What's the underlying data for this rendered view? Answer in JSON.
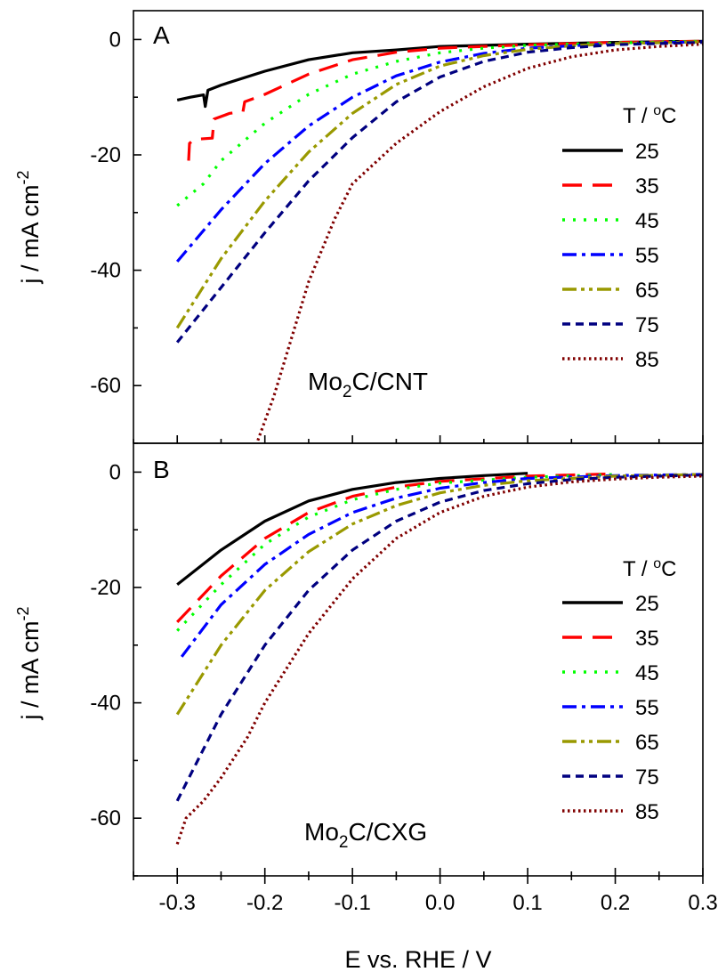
{
  "chart_data": [
    {
      "type": "line",
      "panel_label": "A",
      "annotation": {
        "main": "Mo",
        "sub": "2",
        "rest": "C/CNT"
      },
      "ylabel": {
        "main": "j / mA cm",
        "sup": "-2"
      },
      "xlim": [
        -0.35,
        0.3
      ],
      "ylim": [
        -70,
        5
      ],
      "xticks": [
        -0.3,
        -0.2,
        -0.1,
        0.0,
        0.1,
        0.2,
        0.3
      ],
      "yticks": [
        0,
        -20,
        -40,
        -60
      ],
      "ytick_labels": [
        "0",
        "-20",
        "-40",
        "-60"
      ],
      "legend_title": {
        "main": "T / ",
        "sup": "o",
        "rest": "C"
      },
      "legend_position": "right",
      "series": [
        {
          "name": "25",
          "color": "#000000",
          "dash": "solid",
          "x": [
            -0.3,
            -0.285,
            -0.27,
            -0.268,
            -0.265,
            -0.25,
            -0.2,
            -0.15,
            -0.1,
            -0.05,
            0.0,
            0.1,
            0.2,
            0.3
          ],
          "y": [
            -10.5,
            -10.0,
            -9.6,
            -11.6,
            -8.8,
            -7.9,
            -5.5,
            -3.5,
            -2.3,
            -1.8,
            -1.2,
            -0.8,
            -0.5,
            -0.3
          ]
        },
        {
          "name": "35",
          "color": "#ff0000",
          "dash": "long-dash",
          "x": [
            -0.287,
            -0.286,
            -0.28,
            -0.26,
            -0.258,
            -0.24,
            -0.225,
            -0.223,
            -0.2,
            -0.15,
            -0.1,
            -0.05,
            0.0,
            0.1,
            0.2,
            0.3
          ],
          "y": [
            -21.0,
            -18.0,
            -17.3,
            -17.1,
            -13.8,
            -12.8,
            -12.5,
            -10.8,
            -9.5,
            -6.0,
            -3.5,
            -2.2,
            -1.5,
            -0.9,
            -0.5,
            -0.3
          ]
        },
        {
          "name": "45",
          "color": "#00ff00",
          "dash": "dot",
          "x": [
            -0.3,
            -0.27,
            -0.25,
            -0.2,
            -0.15,
            -0.1,
            -0.05,
            0.0,
            0.05,
            0.1,
            0.2,
            0.3
          ],
          "y": [
            -28.8,
            -25.0,
            -21.0,
            -14.5,
            -9.5,
            -6.0,
            -3.8,
            -2.3,
            -1.5,
            -1.0,
            -0.6,
            -0.3
          ]
        },
        {
          "name": "55",
          "color": "#0000ff",
          "dash": "dash-dot",
          "x": [
            -0.3,
            -0.25,
            -0.2,
            -0.15,
            -0.1,
            -0.05,
            0.0,
            0.05,
            0.1,
            0.2,
            0.3
          ],
          "y": [
            -38.5,
            -29.5,
            -21.5,
            -15.0,
            -10.0,
            -6.3,
            -3.9,
            -2.4,
            -1.5,
            -0.7,
            -0.4
          ]
        },
        {
          "name": "65",
          "color": "#999900",
          "dash": "dash-dot-dot",
          "x": [
            -0.3,
            -0.25,
            -0.2,
            -0.15,
            -0.1,
            -0.05,
            0.0,
            0.05,
            0.1,
            0.15,
            0.2,
            0.3
          ],
          "y": [
            -50.0,
            -38.0,
            -28.0,
            -19.5,
            -12.8,
            -7.8,
            -4.6,
            -2.8,
            -1.7,
            -1.1,
            -0.7,
            -0.4
          ]
        },
        {
          "name": "75",
          "color": "#000080",
          "dash": "short-dash",
          "x": [
            -0.3,
            -0.25,
            -0.2,
            -0.15,
            -0.1,
            -0.05,
            0.0,
            0.05,
            0.1,
            0.15,
            0.2,
            0.3
          ],
          "y": [
            -52.5,
            -43.0,
            -33.5,
            -24.5,
            -17.0,
            -10.8,
            -6.5,
            -3.8,
            -2.2,
            -1.4,
            -0.9,
            -0.5
          ]
        },
        {
          "name": "85",
          "color": "#800000",
          "dash": "fine-dot",
          "x": [
            -0.208,
            -0.19,
            -0.17,
            -0.15,
            -0.12,
            -0.1,
            -0.05,
            0.0,
            0.05,
            0.1,
            0.15,
            0.2,
            0.25,
            0.3
          ],
          "y": [
            -69.5,
            -62.0,
            -52.0,
            -42.0,
            -31.0,
            -25.0,
            -18.0,
            -12.5,
            -8.2,
            -5.0,
            -3.0,
            -1.8,
            -1.2,
            -0.8
          ]
        }
      ]
    },
    {
      "type": "line",
      "panel_label": "B",
      "annotation": {
        "main": "Mo",
        "sub": "2",
        "rest": "C/CXG"
      },
      "ylabel": {
        "main": "j / mA cm",
        "sup": "-2"
      },
      "xlabel": "E vs. RHE / V",
      "xlim": [
        -0.35,
        0.3
      ],
      "ylim": [
        -70,
        5
      ],
      "xticks": [
        -0.3,
        -0.2,
        -0.1,
        0.0,
        0.1,
        0.2,
        0.3
      ],
      "xtick_labels": [
        "-0.3",
        "-0.2",
        "-0.1",
        "0.0",
        "0.1",
        "0.2",
        "0.3"
      ],
      "yticks": [
        0,
        -20,
        -40,
        -60
      ],
      "ytick_labels": [
        "0",
        "-20",
        "-40",
        "-60"
      ],
      "legend_title": {
        "main": "T / ",
        "sup": "o",
        "rest": "C"
      },
      "legend_position": "right",
      "series": [
        {
          "name": "25",
          "color": "#000000",
          "dash": "solid",
          "x": [
            -0.3,
            -0.25,
            -0.2,
            -0.15,
            -0.1,
            -0.05,
            0.0,
            0.05,
            0.1
          ],
          "y": [
            -19.5,
            -13.5,
            -8.5,
            -5.0,
            -3.0,
            -1.8,
            -1.1,
            -0.6,
            -0.2
          ]
        },
        {
          "name": "35",
          "color": "#ff0000",
          "dash": "long-dash",
          "x": [
            -0.3,
            -0.25,
            -0.2,
            -0.15,
            -0.1,
            -0.05,
            0.0,
            0.1,
            0.2
          ],
          "y": [
            -26.0,
            -18.0,
            -11.5,
            -7.0,
            -4.2,
            -2.6,
            -1.6,
            -0.7,
            -0.3
          ]
        },
        {
          "name": "45",
          "color": "#00ff00",
          "dash": "dot",
          "x": [
            -0.3,
            -0.25,
            -0.2,
            -0.15,
            -0.1,
            -0.05,
            0.0,
            0.1,
            0.2
          ],
          "y": [
            -27.5,
            -19.5,
            -12.5,
            -7.8,
            -4.8,
            -3.0,
            -1.9,
            -0.9,
            -0.4
          ]
        },
        {
          "name": "55",
          "color": "#0000ff",
          "dash": "dash-dot",
          "x": [
            -0.295,
            -0.25,
            -0.2,
            -0.15,
            -0.1,
            -0.05,
            0.0,
            0.05,
            0.1,
            0.2,
            0.3
          ],
          "y": [
            -32.0,
            -23.0,
            -16.0,
            -10.8,
            -7.0,
            -4.5,
            -2.8,
            -1.8,
            -1.1,
            -0.6,
            -0.4
          ]
        },
        {
          "name": "65",
          "color": "#999900",
          "dash": "dash-dot-dot",
          "x": [
            -0.3,
            -0.25,
            -0.2,
            -0.15,
            -0.1,
            -0.05,
            0.0,
            0.05,
            0.1,
            0.2,
            0.3
          ],
          "y": [
            -42.0,
            -30.0,
            -20.5,
            -13.8,
            -9.0,
            -5.8,
            -3.6,
            -2.3,
            -1.5,
            -0.7,
            -0.4
          ]
        },
        {
          "name": "75",
          "color": "#000080",
          "dash": "short-dash",
          "x": [
            -0.3,
            -0.25,
            -0.2,
            -0.15,
            -0.1,
            -0.05,
            0.0,
            0.05,
            0.1,
            0.15,
            0.2,
            0.3
          ],
          "y": [
            -57.0,
            -42.0,
            -30.0,
            -20.5,
            -13.5,
            -8.5,
            -5.2,
            -3.2,
            -2.0,
            -1.3,
            -0.9,
            -0.5
          ]
        },
        {
          "name": "85",
          "color": "#800000",
          "dash": "fine-dot",
          "x": [
            -0.3,
            -0.29,
            -0.27,
            -0.25,
            -0.22,
            -0.2,
            -0.15,
            -0.1,
            -0.05,
            0.0,
            0.05,
            0.1,
            0.15,
            0.2,
            0.25,
            0.3
          ],
          "y": [
            -64.5,
            -60.0,
            -57.0,
            -53.0,
            -46.0,
            -40.0,
            -28.0,
            -18.5,
            -11.5,
            -7.0,
            -4.2,
            -2.6,
            -1.7,
            -1.2,
            -0.9,
            -0.7
          ]
        }
      ]
    }
  ]
}
